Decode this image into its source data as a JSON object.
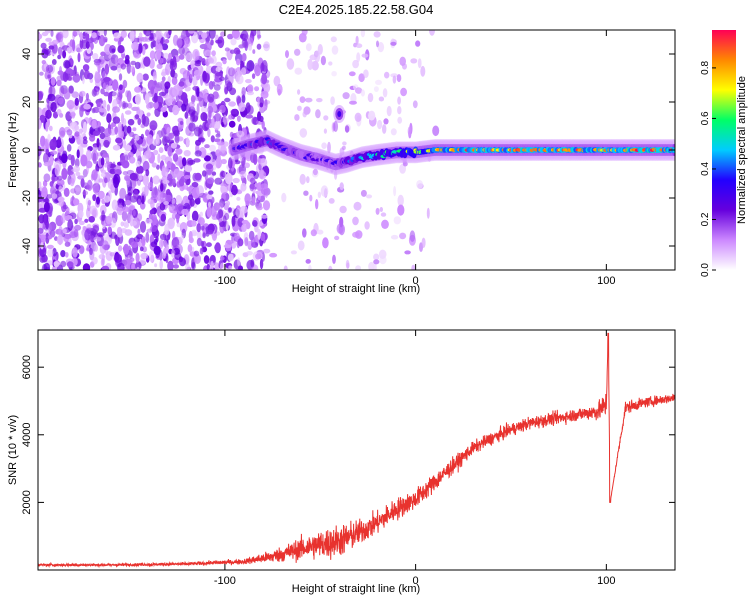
{
  "title": "C2E4.2025.185.22.58.G04",
  "chart_data": [
    {
      "type": "heatmap",
      "xlabel": "Height of straight line (km)",
      "ylabel": "Frequency (Hz)",
      "xlim": [
        -198,
        136
      ],
      "ylim": [
        -50,
        50
      ],
      "x_ticks": [
        -100,
        0,
        100
      ],
      "y_ticks": [
        -40,
        -20,
        0,
        20,
        40
      ],
      "colorbar": {
        "label": "Normalized spectral amplitude",
        "range": [
          0,
          0.95
        ],
        "ticks": [
          0.0,
          0.2,
          0.4,
          0.6,
          0.8
        ],
        "colormap": [
          "#ffffff",
          "#cc88ff",
          "#6600dd",
          "#2200ff",
          "#00ccff",
          "#00ff66",
          "#ffff00",
          "#ff8800",
          "#ff0055"
        ]
      },
      "ridge": {
        "x": [
          -96,
          -88,
          -78,
          -70,
          -60,
          -50,
          -42,
          -36,
          -28,
          -20,
          -10,
          0,
          10,
          20,
          40,
          60,
          80,
          100,
          120,
          136
        ],
        "frequency": [
          0,
          2,
          4,
          1,
          -2,
          -4,
          -6,
          -5,
          -3,
          -2,
          -1,
          -1,
          0,
          0,
          0,
          0,
          0,
          0,
          0,
          0
        ],
        "amplitude": [
          0.3,
          0.35,
          0.4,
          0.35,
          0.3,
          0.3,
          0.3,
          0.4,
          0.5,
          0.55,
          0.6,
          0.7,
          0.75,
          0.85,
          0.85,
          0.85,
          0.85,
          0.8,
          0.9,
          0.85
        ]
      },
      "isolated_blob": {
        "x": -40,
        "frequency": 15,
        "amplitude": 0.3
      },
      "noise_region": {
        "x_range": [
          -198,
          -78
        ],
        "amplitude_range": [
          0.05,
          0.25
        ]
      }
    },
    {
      "type": "line",
      "xlabel": "Height of straight line (km)",
      "ylabel": "SNR (10 * v/v)",
      "xlim": [
        -198,
        136
      ],
      "ylim": [
        0,
        7100
      ],
      "x_ticks": [
        -100,
        0,
        100
      ],
      "y_ticks": [
        2000,
        4000,
        6000
      ],
      "color": "#e8322e",
      "x": [
        -198,
        -160,
        -120,
        -90,
        -75,
        -65,
        -55,
        -45,
        -38,
        -30,
        -20,
        -10,
        0,
        10,
        20,
        30,
        40,
        50,
        60,
        70,
        80,
        90,
        96,
        100,
        101,
        102,
        110,
        120,
        130,
        136
      ],
      "y": [
        150,
        150,
        180,
        250,
        400,
        550,
        700,
        800,
        900,
        1100,
        1400,
        1800,
        2100,
        2600,
        3100,
        3600,
        3900,
        4150,
        4350,
        4450,
        4550,
        4650,
        4700,
        4900,
        7000,
        2000,
        4800,
        4950,
        5050,
        5100
      ],
      "noise_amplitude": [
        40,
        40,
        50,
        80,
        200,
        300,
        400,
        500,
        500,
        400,
        350,
        350,
        300,
        300,
        250,
        200,
        200,
        200,
        200,
        200,
        200,
        220,
        300,
        400,
        0,
        0,
        200,
        150,
        150,
        150
      ]
    }
  ]
}
